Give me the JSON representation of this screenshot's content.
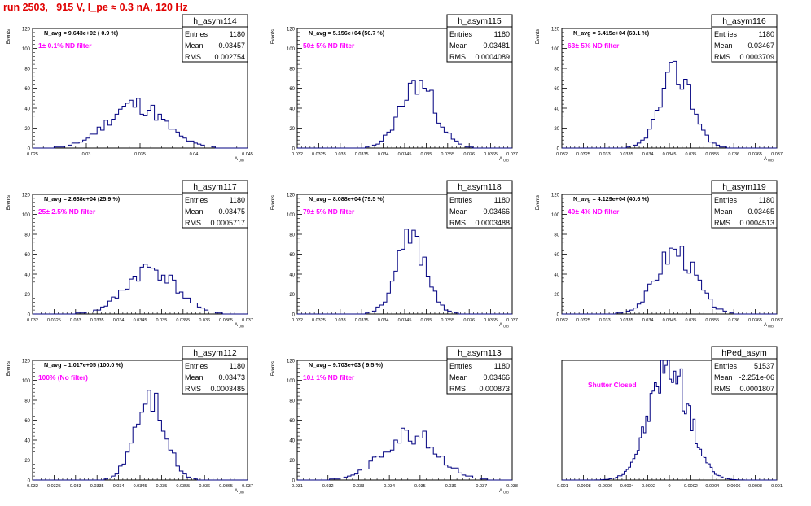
{
  "page": {
    "title": "run 2503,   915 V, I_pe ≈ 0.3 nA, 120 Hz"
  },
  "colors": {
    "histogram": "#000080",
    "annotation": "#ff00ff",
    "title": "#e00000",
    "frame": "#000000"
  },
  "chart_data": [
    {
      "type": "bar",
      "name": "h_asym114",
      "stats": {
        "Entries": "1180",
        "Mean": "0.03457",
        "RMS": "0.002754"
      },
      "navg": "N_avg = 9.643e+02 ( 0.9 %)",
      "note": "1± 0.1% ND filter",
      "ylabel": "Events",
      "xlabel": "A_UID",
      "xlim": [
        0.0245,
        0.0455
      ],
      "ylim": [
        0,
        120
      ],
      "yticks": [
        0,
        20,
        40,
        60,
        80,
        100,
        120
      ],
      "xticks": [
        "0.025",
        "0.03",
        "0.035",
        "0.04",
        "0.045"
      ],
      "mean": 0.03457,
      "rms": 0.002754,
      "peak": 44,
      "bins": 60,
      "seed": 11
    },
    {
      "type": "bar",
      "name": "h_asym115",
      "stats": {
        "Entries": "1180",
        "Mean": "0.03481",
        "RMS": "0.0004089"
      },
      "navg": "N_avg = 5.156e+04 (50.7 %)",
      "note": "50± 5% ND filter",
      "ylabel": "Events",
      "xlabel": "A_UID",
      "xlim": [
        0.032,
        0.037
      ],
      "ylim": [
        0,
        120
      ],
      "yticks": [
        0,
        20,
        40,
        60,
        80,
        100,
        120
      ],
      "xticks": [
        "0.032",
        "0.0325",
        "0.033",
        "0.0335",
        "0.034",
        "0.0345",
        "0.035",
        "0.0355",
        "0.036",
        "0.0365",
        "0.037"
      ],
      "mean": 0.03481,
      "rms": 0.0004089,
      "peak": 65,
      "bins": 60,
      "seed": 23
    },
    {
      "type": "bar",
      "name": "h_asym116",
      "stats": {
        "Entries": "1180",
        "Mean": "0.03467",
        "RMS": "0.0003709"
      },
      "navg": "N_avg = 6.415e+04 (63.1 %)",
      "note": "63± 5% ND filter",
      "ylabel": "Events",
      "xlabel": "A_UID",
      "xlim": [
        0.032,
        0.037
      ],
      "ylim": [
        0,
        120
      ],
      "yticks": [
        0,
        20,
        40,
        60,
        80,
        100,
        120
      ],
      "xticks": [
        "0.032",
        "0.0325",
        "0.033",
        "0.0335",
        "0.034",
        "0.0345",
        "0.035",
        "0.0355",
        "0.036",
        "0.0365",
        "0.037"
      ],
      "mean": 0.03467,
      "rms": 0.0003709,
      "peak": 76,
      "bins": 60,
      "seed": 37
    },
    {
      "type": "bar",
      "name": "h_asym117",
      "stats": {
        "Entries": "1180",
        "Mean": "0.03475",
        "RMS": "0.0005717"
      },
      "navg": "N_avg = 2.638e+04 (25.9 %)",
      "note": "25± 2.5% ND filter",
      "ylabel": "Events",
      "xlabel": "A_UID",
      "xlim": [
        0.032,
        0.037
      ],
      "ylim": [
        0,
        120
      ],
      "yticks": [
        0,
        20,
        40,
        60,
        80,
        100,
        120
      ],
      "xticks": [
        "0.032",
        "0.0325",
        "0.033",
        "0.0335",
        "0.034",
        "0.0345",
        "0.035",
        "0.0355",
        "0.036",
        "0.0365",
        "0.037"
      ],
      "mean": 0.03475,
      "rms": 0.0005717,
      "peak": 46,
      "bins": 60,
      "seed": 41
    },
    {
      "type": "bar",
      "name": "h_asym118",
      "stats": {
        "Entries": "1180",
        "Mean": "0.03466",
        "RMS": "0.0003488"
      },
      "navg": "N_avg = 8.088e+04 (79.5 %)",
      "note": "79± 5% ND filter",
      "ylabel": "Events",
      "xlabel": "A_UID",
      "xlim": [
        0.032,
        0.037
      ],
      "ylim": [
        0,
        120
      ],
      "yticks": [
        0,
        20,
        40,
        60,
        80,
        100,
        120
      ],
      "xticks": [
        "0.032",
        "0.0325",
        "0.033",
        "0.0335",
        "0.034",
        "0.0345",
        "0.035",
        "0.0355",
        "0.036",
        "0.0365",
        "0.037"
      ],
      "mean": 0.03466,
      "rms": 0.0003488,
      "peak": 74,
      "bins": 60,
      "seed": 53
    },
    {
      "type": "bar",
      "name": "h_asym119",
      "stats": {
        "Entries": "1180",
        "Mean": "0.03465",
        "RMS": "0.0004513"
      },
      "navg": "N_avg = 4.129e+04 (40.6 %)",
      "note": "40± 4% ND filter",
      "ylabel": "Events",
      "xlabel": "A_UID",
      "xlim": [
        0.032,
        0.037
      ],
      "ylim": [
        0,
        120
      ],
      "yticks": [
        0,
        20,
        40,
        60,
        80,
        100,
        120
      ],
      "xticks": [
        "0.032",
        "0.0325",
        "0.033",
        "0.0335",
        "0.034",
        "0.0345",
        "0.035",
        "0.0355",
        "0.036",
        "0.0365",
        "0.037"
      ],
      "mean": 0.03465,
      "rms": 0.0004513,
      "peak": 64,
      "bins": 60,
      "seed": 67
    },
    {
      "type": "bar",
      "name": "h_asym112",
      "stats": {
        "Entries": "1180",
        "Mean": "0.03473",
        "RMS": "0.0003485"
      },
      "navg": "N_avg = 1.017e+05 (100.0 %)",
      "note": "100% (No filter)",
      "ylabel": "Events",
      "xlabel": "A_UID",
      "xlim": [
        0.032,
        0.037
      ],
      "ylim": [
        0,
        120
      ],
      "yticks": [
        0,
        20,
        40,
        60,
        80,
        100,
        120
      ],
      "xticks": [
        "0.032",
        "0.0325",
        "0.033",
        "0.0335",
        "0.034",
        "0.0345",
        "0.035",
        "0.0355",
        "0.036",
        "0.0365",
        "0.037"
      ],
      "mean": 0.03473,
      "rms": 0.0003485,
      "peak": 82,
      "bins": 60,
      "seed": 71
    },
    {
      "type": "bar",
      "name": "h_asym113",
      "stats": {
        "Entries": "1180",
        "Mean": "0.03466",
        "RMS": "0.000873"
      },
      "navg": "N_avg = 9.703e+03 ( 9.5 %)",
      "note": "10± 1% ND filter",
      "ylabel": "Events",
      "xlabel": "A_UID",
      "xlim": [
        0.031,
        0.038
      ],
      "ylim": [
        0,
        120
      ],
      "yticks": [
        0,
        20,
        40,
        60,
        80,
        100,
        120
      ],
      "xticks": [
        "0.031",
        "0.032",
        "0.033",
        "0.034",
        "0.035",
        "0.036",
        "0.037",
        "0.038"
      ],
      "mean": 0.03466,
      "rms": 0.000873,
      "peak": 47,
      "bins": 60,
      "seed": 83
    },
    {
      "type": "bar",
      "name": "hPed_asym",
      "stats": {
        "Entries": "51537",
        "Mean": "-2.251e-06",
        "RMS": "0.0001807"
      },
      "navg": "",
      "note": "Shutter Closed",
      "ylabel": "",
      "xlabel": "",
      "xlim": [
        -0.001,
        0.001
      ],
      "ylim": [
        0,
        2500
      ],
      "yticks": [],
      "xticks": [
        "-0.001",
        "-0.0008",
        "-0.0006",
        "-0.0004",
        "-0.0002",
        "0",
        "0.0002",
        "0.0004",
        "0.0006",
        "0.0008",
        "0.001"
      ],
      "mean": -2.3e-06,
      "rms": 0.0001807,
      "peak": 2400,
      "bins": 100,
      "seed": 97
    }
  ]
}
